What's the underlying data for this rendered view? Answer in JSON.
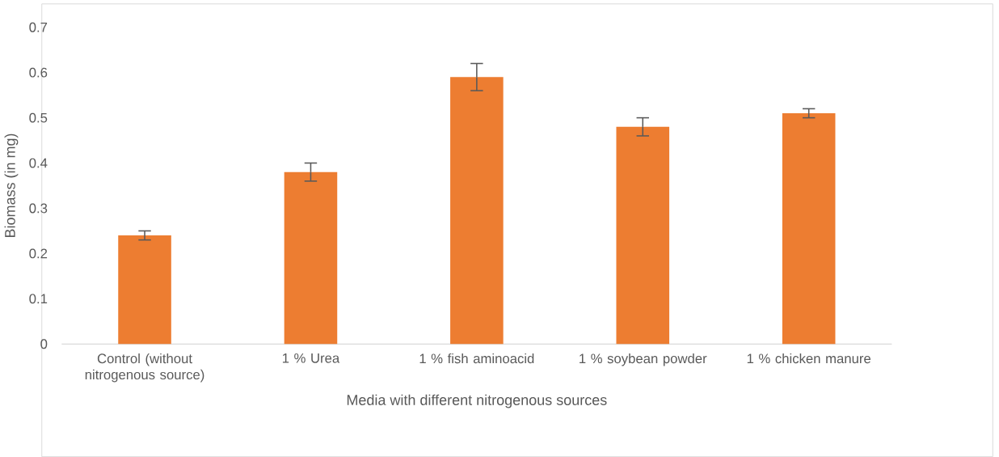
{
  "chart_data": {
    "type": "bar",
    "xlabel": "Media with different nitrogenous sources",
    "ylabel": "Biomass (in mg)",
    "categories": [
      "Control (without nitrogenous source)",
      "1 % Urea",
      "1 % fish aminoacid",
      "1 % soybean powder",
      "1 % chicken manure"
    ],
    "values": [
      0.24,
      0.38,
      0.59,
      0.48,
      0.51
    ],
    "errors": [
      0.01,
      0.02,
      0.03,
      0.02,
      0.01
    ],
    "color": "#ed7d31",
    "ylim": [
      0,
      0.7
    ],
    "yticks": [
      0,
      0.1,
      0.2,
      0.3,
      0.4,
      0.5,
      0.6,
      0.7
    ]
  }
}
